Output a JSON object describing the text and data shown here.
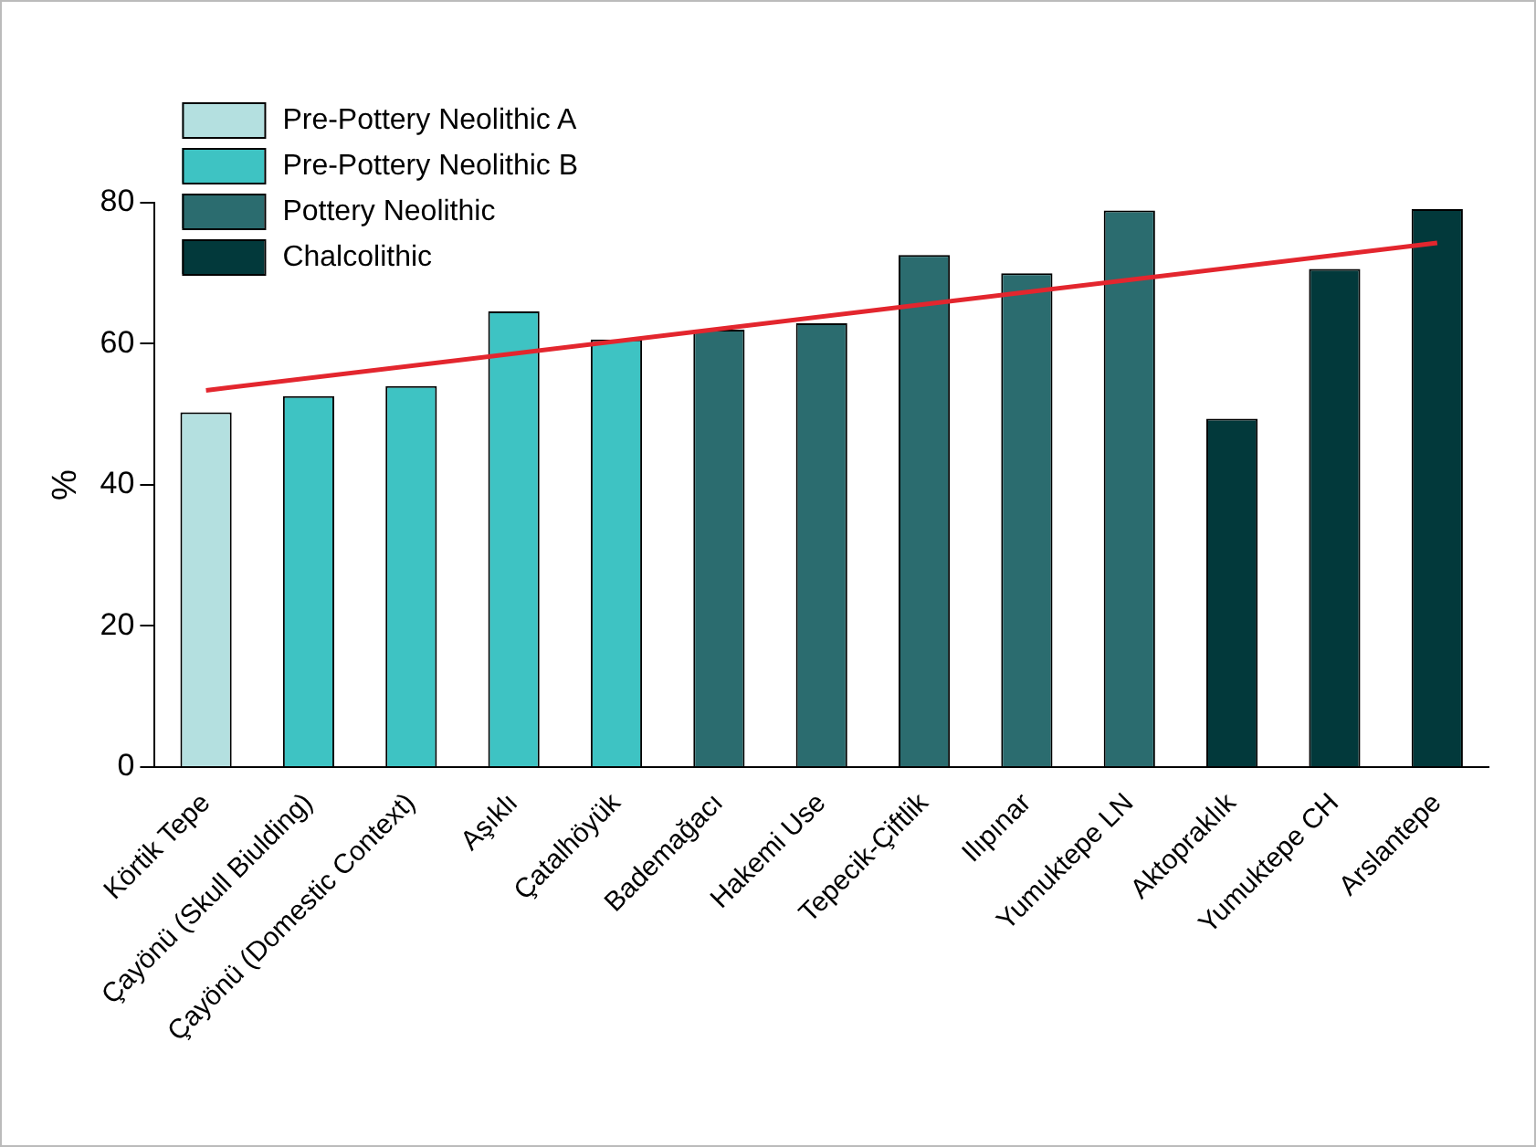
{
  "chart_data": {
    "type": "bar",
    "ylabel": "%",
    "categories": [
      "Körtik Tepe",
      "Çayönü (Skull Biulding)",
      "Çayönü (Domestic Context)",
      "Aşıklı",
      "Çatalhöyük",
      "Bademağacı",
      "Hakemi Use",
      "Tepecik-Çiftlik",
      "Ilıpınar",
      "Yumuktepe LN",
      "Aktopraklık",
      "Yumuktepe CH",
      "Arslantepe"
    ],
    "series": [
      {
        "name": "Pre-Pottery Neolithic A",
        "color": "#b4e0e0",
        "values": [
          50.3,
          null,
          null,
          null,
          null,
          null,
          null,
          null,
          null,
          null,
          null,
          null,
          null
        ]
      },
      {
        "name": "Pre-Pottery Neolithic B",
        "color": "#3ec3c3",
        "values": [
          null,
          52.6,
          54,
          64.6,
          60.6,
          null,
          null,
          null,
          null,
          null,
          null,
          null,
          null
        ]
      },
      {
        "name": "Pottery Neolithic",
        "color": "#2b6c6f",
        "values": [
          null,
          null,
          null,
          null,
          null,
          62,
          62.9,
          72.6,
          70,
          78.9,
          null,
          null,
          null
        ]
      },
      {
        "name": "Chalcolithic",
        "color": "#02393b",
        "values": [
          null,
          null,
          null,
          null,
          null,
          null,
          null,
          null,
          null,
          null,
          49.4,
          70.6,
          79.1
        ]
      },
      {
        "type": "line",
        "color": "#e3262e",
        "x": [
          "Körtik Tepe",
          "Arslantepe"
        ],
        "values": [
          53.4,
          74.3
        ]
      }
    ],
    "ylim": [
      0,
      80
    ],
    "yticks": [
      0,
      20,
      40,
      60,
      80
    ],
    "grid": false,
    "legend": "top left",
    "marker": "none"
  }
}
